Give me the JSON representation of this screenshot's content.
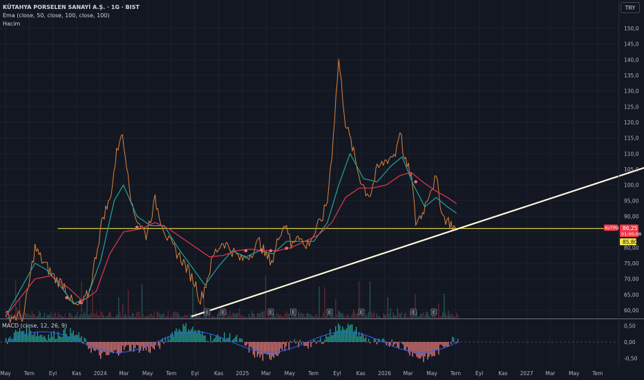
{
  "header": {
    "symbol_title": "KÜTAHYA PORSELEN SANAYİ A.Ş. · 1G · BIST",
    "indicator_ema": "Ema (close, 50, close, 100, close, 100)",
    "indicator_volume": "Hacim",
    "currency_button": "TRY"
  },
  "macd": {
    "label": "MACD (close, 12, 26, 9)"
  },
  "price_tags": {
    "ticker": "KUTPO",
    "last_price": "86,25",
    "countdown": "01:00:08",
    "level_price": "85,80"
  },
  "colors": {
    "background": "#131722",
    "grid": "#1e222d",
    "candle_up": "#e0853a",
    "ema_fast": "#26a69a",
    "ema_slow": "#e53950",
    "trendline": "#fff8dc",
    "level_line": "#f0e442",
    "volume_up": "#2a6b66",
    "volume_down": "#7a2e37",
    "macd_pos": "#26a69a",
    "macd_neg": "#f08080"
  },
  "chart_data": {
    "type": "line",
    "title": "KÜTAHYA PORSELEN SANAYİ A.Ş. · 1G · BIST",
    "x_ticks": [
      "May",
      "Tem",
      "Eyl",
      "Kas",
      "2024",
      "Mar",
      "May",
      "Tem",
      "Eyl",
      "Kas",
      "2025",
      "Mar",
      "May",
      "Tem",
      "Eyl",
      "Kas",
      "2026",
      "Mar",
      "May",
      "Tem",
      "Eyl",
      "Kas",
      "2027",
      "Mar",
      "May",
      "Tem"
    ],
    "y_ticks": [
      "60,00",
      "65,00",
      "70,00",
      "75,00",
      "80,00",
      "85,00",
      "90,00",
      "95,00",
      "100,0",
      "105,0",
      "110,0",
      "115,0",
      "120,0",
      "125,0",
      "130,0",
      "135,0",
      "140,0",
      "145,0",
      "150,0"
    ],
    "ylim": [
      58,
      152
    ],
    "macd_ticks": [
      "0,50",
      "0,00",
      "-0,50"
    ],
    "macd_ylim": [
      -0.6,
      0.6
    ],
    "earnings_markers": [
      "E",
      "E",
      "E",
      "E",
      "E",
      "E",
      "E",
      "E",
      "E"
    ],
    "horizontal_level": 86.1,
    "series": [
      {
        "name": "price",
        "points": [
          [
            0,
            58
          ],
          [
            4,
            58
          ],
          [
            6.5,
            80
          ],
          [
            8,
            76
          ],
          [
            9.5,
            73
          ],
          [
            11,
            70
          ],
          [
            13,
            68
          ],
          [
            14.5,
            63
          ],
          [
            15.5,
            61
          ],
          [
            17,
            62
          ],
          [
            18.5,
            66
          ],
          [
            20,
            78
          ],
          [
            21.5,
            90
          ],
          [
            23,
            95
          ],
          [
            24.5,
            110
          ],
          [
            25.5,
            117
          ],
          [
            27,
            105
          ],
          [
            28,
            92
          ],
          [
            29.5,
            88
          ],
          [
            31,
            84
          ],
          [
            33,
            95
          ],
          [
            34.5,
            88
          ],
          [
            36,
            82
          ],
          [
            37.5,
            79
          ],
          [
            39,
            76
          ],
          [
            40.5,
            72
          ],
          [
            42,
            68
          ],
          [
            43,
            63
          ],
          [
            44.5,
            70
          ],
          [
            46,
            78
          ],
          [
            48,
            82
          ],
          [
            50,
            79
          ],
          [
            52,
            76
          ],
          [
            54,
            78
          ],
          [
            56,
            82
          ],
          [
            57.5,
            77
          ],
          [
            59,
            76
          ],
          [
            60.5,
            85
          ],
          [
            62,
            88
          ],
          [
            63,
            80
          ],
          [
            64.5,
            85
          ],
          [
            66,
            80
          ],
          [
            68,
            84
          ],
          [
            70,
            90
          ],
          [
            71,
            95
          ],
          [
            72,
            110
          ],
          [
            73.5,
            140
          ],
          [
            75,
            120
          ],
          [
            76.5,
            112
          ],
          [
            78,
            103
          ],
          [
            79.5,
            98
          ],
          [
            80.5,
            97
          ],
          [
            82,
            105
          ],
          [
            84,
            108
          ],
          [
            86,
            110
          ],
          [
            87,
            118
          ],
          [
            88,
            108
          ],
          [
            89.5,
            103
          ],
          [
            90.5,
            88
          ],
          [
            92,
            91
          ],
          [
            93.5,
            98
          ],
          [
            95,
            102
          ],
          [
            96.5,
            90
          ],
          [
            98,
            88
          ],
          [
            99.5,
            85.5
          ]
        ]
      },
      {
        "name": "ema_fast",
        "points": [
          [
            0,
            58
          ],
          [
            6.5,
            75
          ],
          [
            9,
            73
          ],
          [
            12,
            68
          ],
          [
            15,
            62
          ],
          [
            18,
            64
          ],
          [
            21,
            76
          ],
          [
            24,
            95
          ],
          [
            26,
            100
          ],
          [
            29,
            90
          ],
          [
            32,
            87
          ],
          [
            35,
            87
          ],
          [
            38,
            80
          ],
          [
            41,
            74
          ],
          [
            44,
            68
          ],
          [
            47,
            74
          ],
          [
            50,
            79
          ],
          [
            53,
            77
          ],
          [
            56,
            79
          ],
          [
            59,
            78
          ],
          [
            62,
            82
          ],
          [
            65,
            82
          ],
          [
            68,
            82
          ],
          [
            71,
            88
          ],
          [
            73.5,
            100
          ],
          [
            76,
            110
          ],
          [
            79,
            102
          ],
          [
            82,
            101
          ],
          [
            85,
            106
          ],
          [
            87.5,
            109
          ],
          [
            90,
            100
          ],
          [
            92.5,
            93
          ],
          [
            95,
            96
          ],
          [
            97.5,
            93
          ],
          [
            99.5,
            91
          ]
        ]
      },
      {
        "name": "ema_slow",
        "points": [
          [
            0,
            58
          ],
          [
            6.5,
            70
          ],
          [
            10,
            71
          ],
          [
            14,
            67
          ],
          [
            17,
            63
          ],
          [
            20,
            66
          ],
          [
            23,
            78
          ],
          [
            26,
            85
          ],
          [
            30,
            86
          ],
          [
            33,
            88
          ],
          [
            36,
            86
          ],
          [
            39,
            83
          ],
          [
            42,
            80
          ],
          [
            45,
            77
          ],
          [
            48,
            77.5
          ],
          [
            51,
            79
          ],
          [
            54,
            79.5
          ],
          [
            57,
            79
          ],
          [
            60,
            79
          ],
          [
            63,
            80
          ],
          [
            66,
            82
          ],
          [
            69,
            84
          ],
          [
            72,
            88
          ],
          [
            75,
            96
          ],
          [
            78,
            99
          ],
          [
            81,
            99
          ],
          [
            84,
            100
          ],
          [
            87,
            103
          ],
          [
            89.5,
            104
          ],
          [
            92,
            101
          ],
          [
            95,
            98
          ],
          [
            97.5,
            96
          ],
          [
            99.5,
            94
          ]
        ]
      },
      {
        "name": "trendline",
        "points": [
          [
            41,
            58
          ],
          [
            100,
            86.1
          ],
          [
            142,
            106
          ]
        ]
      }
    ]
  }
}
